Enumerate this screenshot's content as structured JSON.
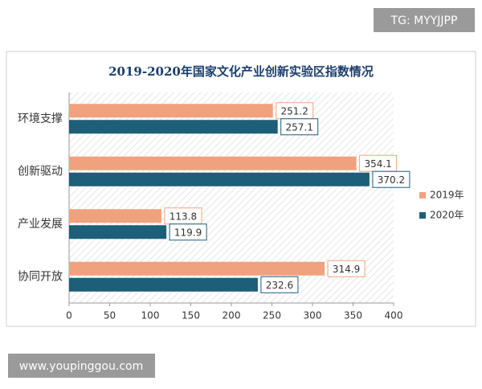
{
  "chart_data": {
    "type": "bar",
    "orientation": "horizontal",
    "title": "2019-2020年国家文化产业创新实验区指数情况",
    "categories": [
      "环境支撑",
      "创新驱动",
      "产业发展",
      "协同开放"
    ],
    "series": [
      {
        "name": "2019年",
        "color": "#f0a27e",
        "values": [
          251.2,
          354.1,
          113.8,
          314.9
        ]
      },
      {
        "name": "2020年",
        "color": "#1d5e78",
        "values": [
          257.1,
          370.2,
          119.9,
          232.6
        ]
      }
    ],
    "xlim": [
      0,
      400
    ],
    "xticks": [
      0,
      50,
      100,
      150,
      200,
      250,
      300,
      350,
      400
    ],
    "legend": "right"
  },
  "watermarks": {
    "top": "TG: MYYJJPP",
    "bottom": "www.youpinggou.com"
  }
}
